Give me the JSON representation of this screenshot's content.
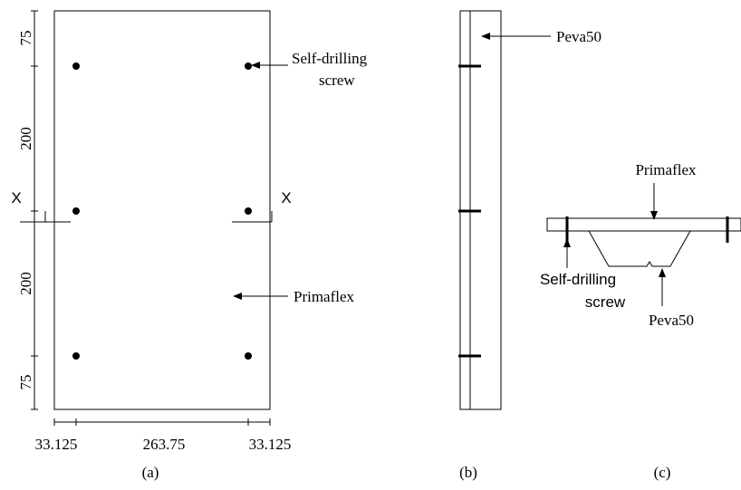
{
  "panel_a": {
    "caption": "(a)",
    "vertical_dimensions": [
      "75",
      "200",
      "200",
      "75"
    ],
    "horizontal_dimensions": [
      "33.125",
      "263.75",
      "33.125"
    ],
    "section_labels": [
      "X",
      "X"
    ],
    "screw_callout": [
      "Self-drilling",
      "screw"
    ],
    "panel_callout": "Primaflex"
  },
  "panel_b": {
    "caption": "(b)",
    "callout": "Peva50"
  },
  "panel_c": {
    "caption": "(c)",
    "top_callout": "Primaflex",
    "screw_callout": [
      "Self-drilling",
      "screw"
    ],
    "bottom_callout": "Peva50"
  }
}
